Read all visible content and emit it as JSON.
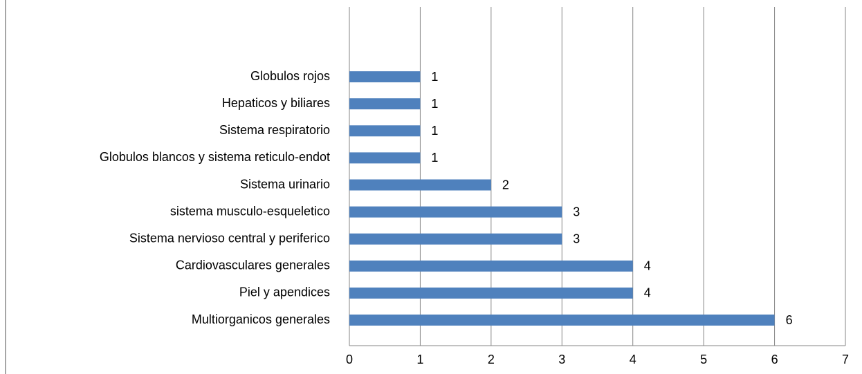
{
  "chart_data": {
    "type": "bar",
    "orientation": "horizontal",
    "categories": [
      "Multiorganicos generales",
      "Piel y apendices",
      "Cardiovasculares generales",
      "Sistema nervioso central y periferico",
      "sistema musculo-esqueletico",
      "Sistema urinario",
      "Globulos blancos y sistema reticulo-endot",
      "Sistema respiratorio",
      "Hepaticos y biliares",
      "Globulos rojos"
    ],
    "values": [
      6,
      4,
      4,
      3,
      3,
      2,
      1,
      1,
      1,
      1
    ],
    "color": "#4f81bd",
    "xlim": [
      0,
      7
    ],
    "xticks": [
      0,
      1,
      2,
      3,
      4,
      5,
      6,
      7
    ],
    "grid": true
  }
}
